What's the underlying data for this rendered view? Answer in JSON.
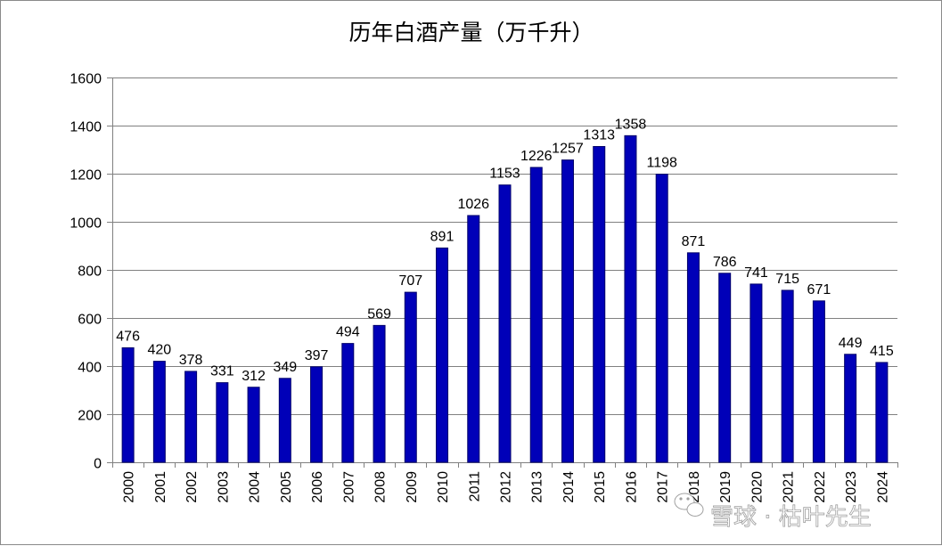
{
  "chart_data": {
    "type": "bar",
    "title": "历年白酒产量（万千升）",
    "categories": [
      "2000",
      "2001",
      "2002",
      "2003",
      "2004",
      "2005",
      "2006",
      "2007",
      "2008",
      "2009",
      "2010",
      "2011",
      "2012",
      "2013",
      "2014",
      "2015",
      "2016",
      "2017",
      "2018",
      "2019",
      "2020",
      "2021",
      "2022",
      "2023",
      "2024"
    ],
    "values": [
      476,
      420,
      378,
      331,
      312,
      349,
      397,
      494,
      569,
      707,
      891,
      1026,
      1153,
      1226,
      1257,
      1313,
      1358,
      1198,
      871,
      786,
      741,
      715,
      671,
      449,
      415
    ],
    "ylim": [
      0,
      1600
    ],
    "yticks": [
      0,
      200,
      400,
      600,
      800,
      1000,
      1200,
      1400,
      1600
    ],
    "grid": true,
    "legend": "none",
    "bar_color": "#0000b8",
    "bar_stroke": "#00006a"
  },
  "watermark": {
    "text": "雪球 · 枯叶先生",
    "icon": "wechat-icon"
  }
}
